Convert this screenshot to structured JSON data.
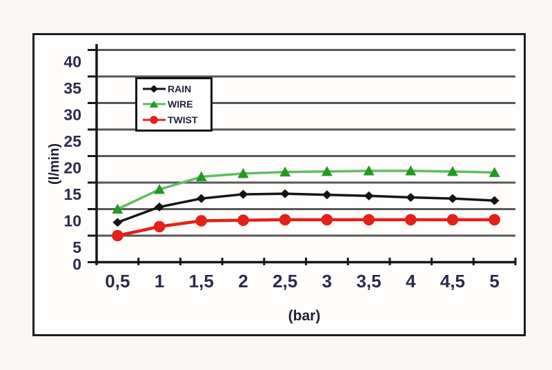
{
  "chart_data": {
    "type": "line",
    "title": "",
    "xlabel": "(bar)",
    "ylabel": "(l/min)",
    "x": [
      0.5,
      1,
      1.5,
      2,
      2.5,
      3,
      3.5,
      4,
      4.5,
      5
    ],
    "xticklabels": [
      "0,5",
      "1",
      "1,5",
      "2",
      "2,5",
      "3",
      "3,5",
      "4",
      "4,5",
      "5"
    ],
    "yticks": [
      0,
      5,
      10,
      15,
      20,
      25,
      30,
      35,
      40
    ],
    "yticklabels": [
      "0",
      "5",
      "10",
      "15",
      "20",
      "25",
      "30",
      "35",
      "40"
    ],
    "ylim": [
      0,
      40
    ],
    "grid": "horizontal",
    "legend_position": "upper-left-inside",
    "series": [
      {
        "name": "RAIN",
        "marker": "diamond",
        "color": "#141414",
        "line_color": "#141414",
        "values": [
          7.5,
          10.4,
          12.0,
          12.8,
          12.9,
          12.7,
          12.5,
          12.2,
          12.0,
          11.6
        ]
      },
      {
        "name": "WIRE",
        "marker": "triangle",
        "color": "#249924",
        "line_color": "#62bb62",
        "values": [
          10.0,
          13.7,
          16.1,
          16.7,
          17.0,
          17.1,
          17.2,
          17.2,
          17.1,
          16.9
        ]
      },
      {
        "name": "TWIST",
        "marker": "circle",
        "color": "#e3201a",
        "line_color": "#e3201a",
        "values": [
          5.0,
          6.7,
          7.8,
          7.9,
          8.0,
          8.0,
          8.0,
          8.0,
          8.0,
          8.0
        ]
      }
    ],
    "colors": {
      "grid": "#575757",
      "axis": "#161616",
      "tick_label": "#2b2b4a",
      "figure_border": "#1c1c1c",
      "legend_border": "#141414",
      "background": "#fbf7f4"
    }
  }
}
